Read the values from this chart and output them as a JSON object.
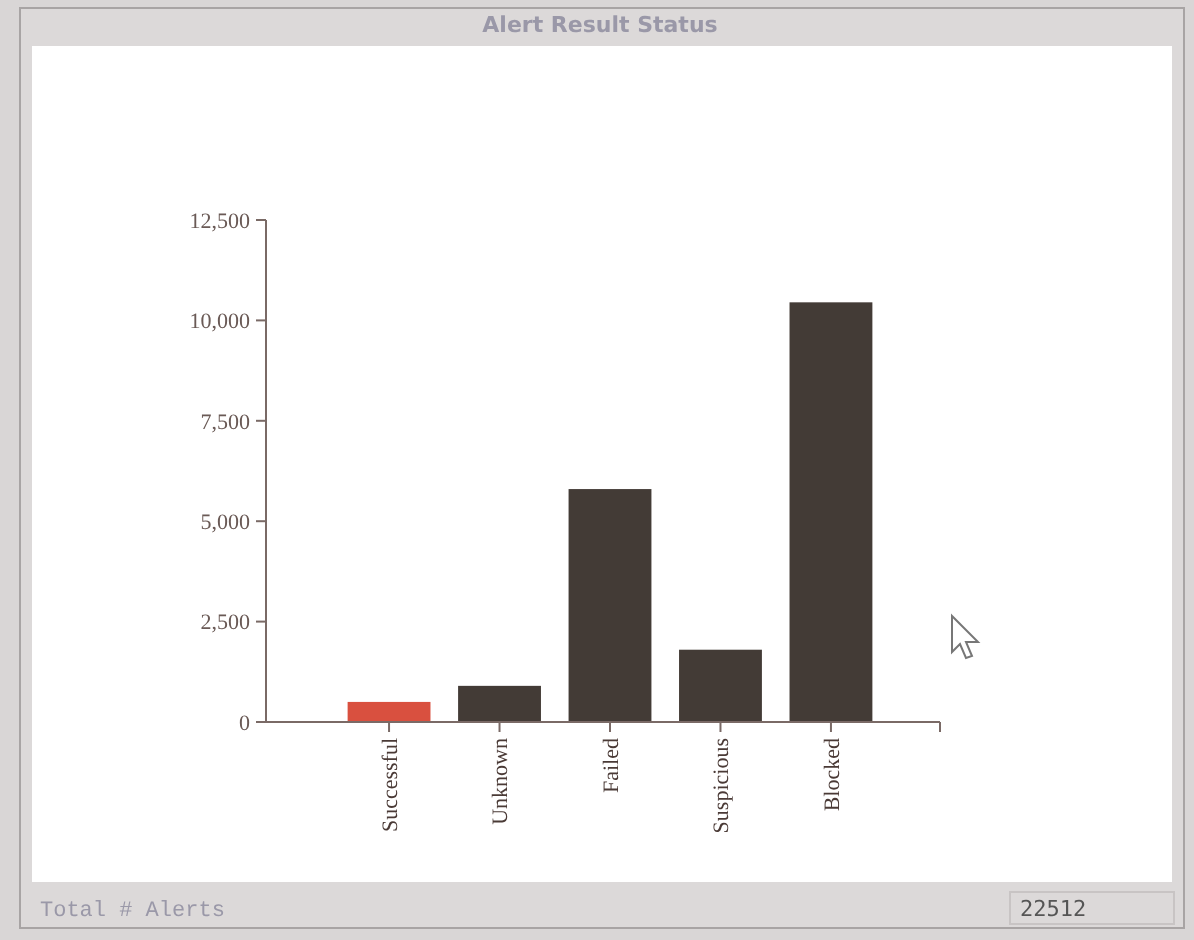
{
  "chart_data": {
    "type": "bar",
    "title": "Alert Result Status",
    "categories": [
      "Successful",
      "Unknown",
      "Failed",
      "Suspicious",
      "Blocked"
    ],
    "values": [
      500,
      900,
      5800,
      1800,
      10450
    ],
    "colors": [
      "#d9503f",
      "#433b36",
      "#433b36",
      "#433b36",
      "#433b36"
    ],
    "ylim": [
      0,
      12500
    ],
    "yticks": [
      {
        "value": 0,
        "label": "0"
      },
      {
        "value": 2500,
        "label": "2,500"
      },
      {
        "value": 5000,
        "label": "5,000"
      },
      {
        "value": 7500,
        "label": "7,500"
      },
      {
        "value": 10000,
        "label": "10,000"
      },
      {
        "value": 12500,
        "label": "12,500"
      }
    ],
    "annotations": [
      "Total # Alerts",
      "22512"
    ]
  }
}
